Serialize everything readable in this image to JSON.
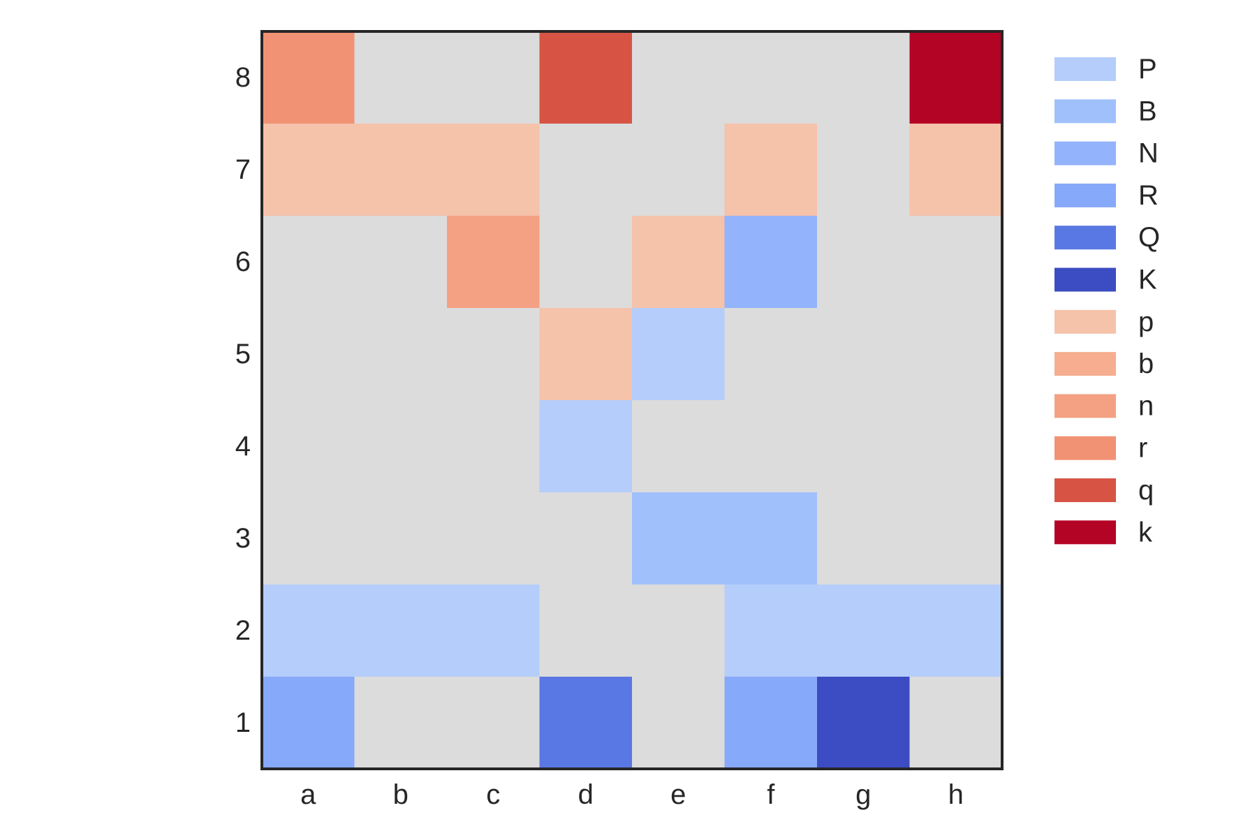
{
  "chart_data": {
    "type": "heatmap",
    "title": "",
    "xlabel": "",
    "ylabel": "",
    "x_categories": [
      "a",
      "b",
      "c",
      "d",
      "e",
      "f",
      "g",
      "h"
    ],
    "y_categories": [
      "8",
      "7",
      "6",
      "5",
      "4",
      "3",
      "2",
      "1"
    ],
    "grid": false,
    "legend_position": "right",
    "empty_color": "#dcdcdc",
    "board": [
      [
        "r",
        "",
        "",
        "q",
        "",
        "",
        "",
        "k"
      ],
      [
        "p",
        "p",
        "p",
        "",
        "",
        "p",
        "",
        "p"
      ],
      [
        "",
        "",
        "n",
        "",
        "p",
        "N",
        "",
        ""
      ],
      [
        "",
        "",
        "",
        "p",
        "P",
        "",
        "",
        ""
      ],
      [
        "",
        "",
        "",
        "P",
        "",
        "",
        "",
        ""
      ],
      [
        "",
        "",
        "",
        "",
        "B",
        "B",
        "",
        ""
      ],
      [
        "P",
        "P",
        "P",
        "",
        "",
        "P",
        "P",
        "P"
      ],
      [
        "R",
        "",
        "",
        "Q",
        "",
        "R",
        "K",
        ""
      ]
    ],
    "legend": [
      {
        "label": "P",
        "color": "#b5cdfa"
      },
      {
        "label": "B",
        "color": "#a0c0fc"
      },
      {
        "label": "N",
        "color": "#93b3fc"
      },
      {
        "label": "R",
        "color": "#87a9f9"
      },
      {
        "label": "Q",
        "color": "#5a78e3"
      },
      {
        "label": "K",
        "color": "#3c4cc2"
      },
      {
        "label": "p",
        "color": "#f5c2aa"
      },
      {
        "label": "b",
        "color": "#f6ad90"
      },
      {
        "label": "n",
        "color": "#f4a183"
      },
      {
        "label": "r",
        "color": "#f29274"
      },
      {
        "label": "q",
        "color": "#d75444"
      },
      {
        "label": "k",
        "color": "#b40426"
      }
    ]
  }
}
